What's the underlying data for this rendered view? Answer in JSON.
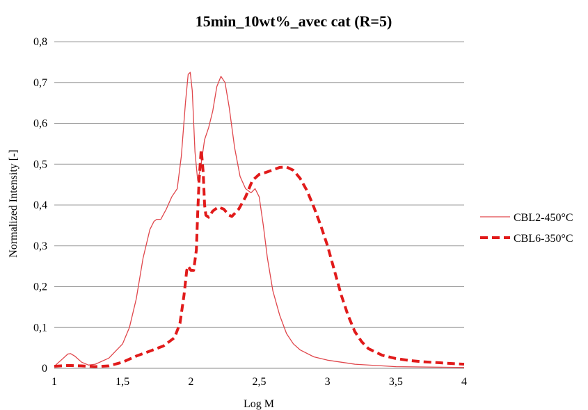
{
  "chart_data": {
    "type": "line",
    "title": "15min_10wt%_avec cat (R=5)",
    "xlabel": "Log M",
    "ylabel": "Normalized Intensity [-]",
    "xlim": [
      1,
      4
    ],
    "ylim": [
      0,
      0.8
    ],
    "x_ticks": [
      1,
      1.5,
      2,
      2.5,
      3,
      3.5,
      4
    ],
    "x_tick_labels": [
      "1",
      "1,5",
      "2",
      "2,5",
      "3",
      "3,5",
      "4"
    ],
    "y_ticks": [
      0,
      0.1,
      0.2,
      0.3,
      0.4,
      0.5,
      0.6,
      0.7,
      0.8
    ],
    "y_tick_labels": [
      "0",
      "0,1",
      "0,2",
      "0,3",
      "0,4",
      "0,5",
      "0,6",
      "0,7",
      "0,8"
    ],
    "grid": "horizontal",
    "legend_position": "right",
    "series": [
      {
        "name": "CBL2-450°C",
        "color": "#e0474c",
        "style": "solid",
        "points": [
          [
            1.0,
            0.005
          ],
          [
            1.05,
            0.02
          ],
          [
            1.1,
            0.035
          ],
          [
            1.12,
            0.036
          ],
          [
            1.15,
            0.03
          ],
          [
            1.2,
            0.015
          ],
          [
            1.25,
            0.008
          ],
          [
            1.3,
            0.01
          ],
          [
            1.4,
            0.025
          ],
          [
            1.5,
            0.06
          ],
          [
            1.55,
            0.1
          ],
          [
            1.6,
            0.17
          ],
          [
            1.65,
            0.27
          ],
          [
            1.7,
            0.34
          ],
          [
            1.73,
            0.36
          ],
          [
            1.75,
            0.365
          ],
          [
            1.78,
            0.365
          ],
          [
            1.82,
            0.39
          ],
          [
            1.86,
            0.42
          ],
          [
            1.9,
            0.44
          ],
          [
            1.93,
            0.52
          ],
          [
            1.96,
            0.65
          ],
          [
            1.98,
            0.72
          ],
          [
            1.995,
            0.725
          ],
          [
            2.01,
            0.68
          ],
          [
            2.03,
            0.53
          ],
          [
            2.05,
            0.46
          ],
          [
            2.07,
            0.49
          ],
          [
            2.1,
            0.56
          ],
          [
            2.13,
            0.59
          ],
          [
            2.16,
            0.63
          ],
          [
            2.19,
            0.69
          ],
          [
            2.22,
            0.715
          ],
          [
            2.25,
            0.7
          ],
          [
            2.28,
            0.64
          ],
          [
            2.32,
            0.54
          ],
          [
            2.36,
            0.47
          ],
          [
            2.4,
            0.44
          ],
          [
            2.44,
            0.43
          ],
          [
            2.47,
            0.44
          ],
          [
            2.5,
            0.42
          ],
          [
            2.53,
            0.35
          ],
          [
            2.56,
            0.27
          ],
          [
            2.6,
            0.19
          ],
          [
            2.65,
            0.13
          ],
          [
            2.7,
            0.085
          ],
          [
            2.75,
            0.06
          ],
          [
            2.8,
            0.045
          ],
          [
            2.9,
            0.028
          ],
          [
            3.0,
            0.02
          ],
          [
            3.2,
            0.01
          ],
          [
            3.5,
            0.004
          ],
          [
            4.0,
            0.002
          ]
        ]
      },
      {
        "name": "CBL6-350°C",
        "color": "#e11a1a",
        "style": "dashed",
        "points": [
          [
            1.0,
            0.005
          ],
          [
            1.1,
            0.007
          ],
          [
            1.2,
            0.006
          ],
          [
            1.3,
            0.004
          ],
          [
            1.4,
            0.006
          ],
          [
            1.5,
            0.015
          ],
          [
            1.6,
            0.03
          ],
          [
            1.7,
            0.042
          ],
          [
            1.8,
            0.055
          ],
          [
            1.88,
            0.075
          ],
          [
            1.92,
            0.11
          ],
          [
            1.95,
            0.18
          ],
          [
            1.97,
            0.24
          ],
          [
            1.98,
            0.25
          ],
          [
            2.0,
            0.24
          ],
          [
            2.02,
            0.24
          ],
          [
            2.04,
            0.29
          ],
          [
            2.05,
            0.38
          ],
          [
            2.06,
            0.46
          ],
          [
            2.07,
            0.51
          ],
          [
            2.075,
            0.535
          ],
          [
            2.08,
            0.52
          ],
          [
            2.09,
            0.48
          ],
          [
            2.1,
            0.4
          ],
          [
            2.11,
            0.375
          ],
          [
            2.13,
            0.37
          ],
          [
            2.16,
            0.385
          ],
          [
            2.2,
            0.395
          ],
          [
            2.24,
            0.39
          ],
          [
            2.28,
            0.375
          ],
          [
            2.3,
            0.372
          ],
          [
            2.35,
            0.39
          ],
          [
            2.4,
            0.42
          ],
          [
            2.45,
            0.46
          ],
          [
            2.5,
            0.475
          ],
          [
            2.55,
            0.48
          ],
          [
            2.6,
            0.486
          ],
          [
            2.65,
            0.492
          ],
          [
            2.7,
            0.493
          ],
          [
            2.75,
            0.485
          ],
          [
            2.8,
            0.465
          ],
          [
            2.85,
            0.435
          ],
          [
            2.9,
            0.395
          ],
          [
            2.95,
            0.35
          ],
          [
            3.0,
            0.3
          ],
          [
            3.05,
            0.24
          ],
          [
            3.1,
            0.18
          ],
          [
            3.15,
            0.13
          ],
          [
            3.2,
            0.09
          ],
          [
            3.25,
            0.065
          ],
          [
            3.3,
            0.048
          ],
          [
            3.4,
            0.032
          ],
          [
            3.5,
            0.024
          ],
          [
            3.6,
            0.019
          ],
          [
            3.7,
            0.016
          ],
          [
            3.8,
            0.014
          ],
          [
            3.9,
            0.012
          ],
          [
            4.0,
            0.01
          ]
        ]
      }
    ]
  }
}
